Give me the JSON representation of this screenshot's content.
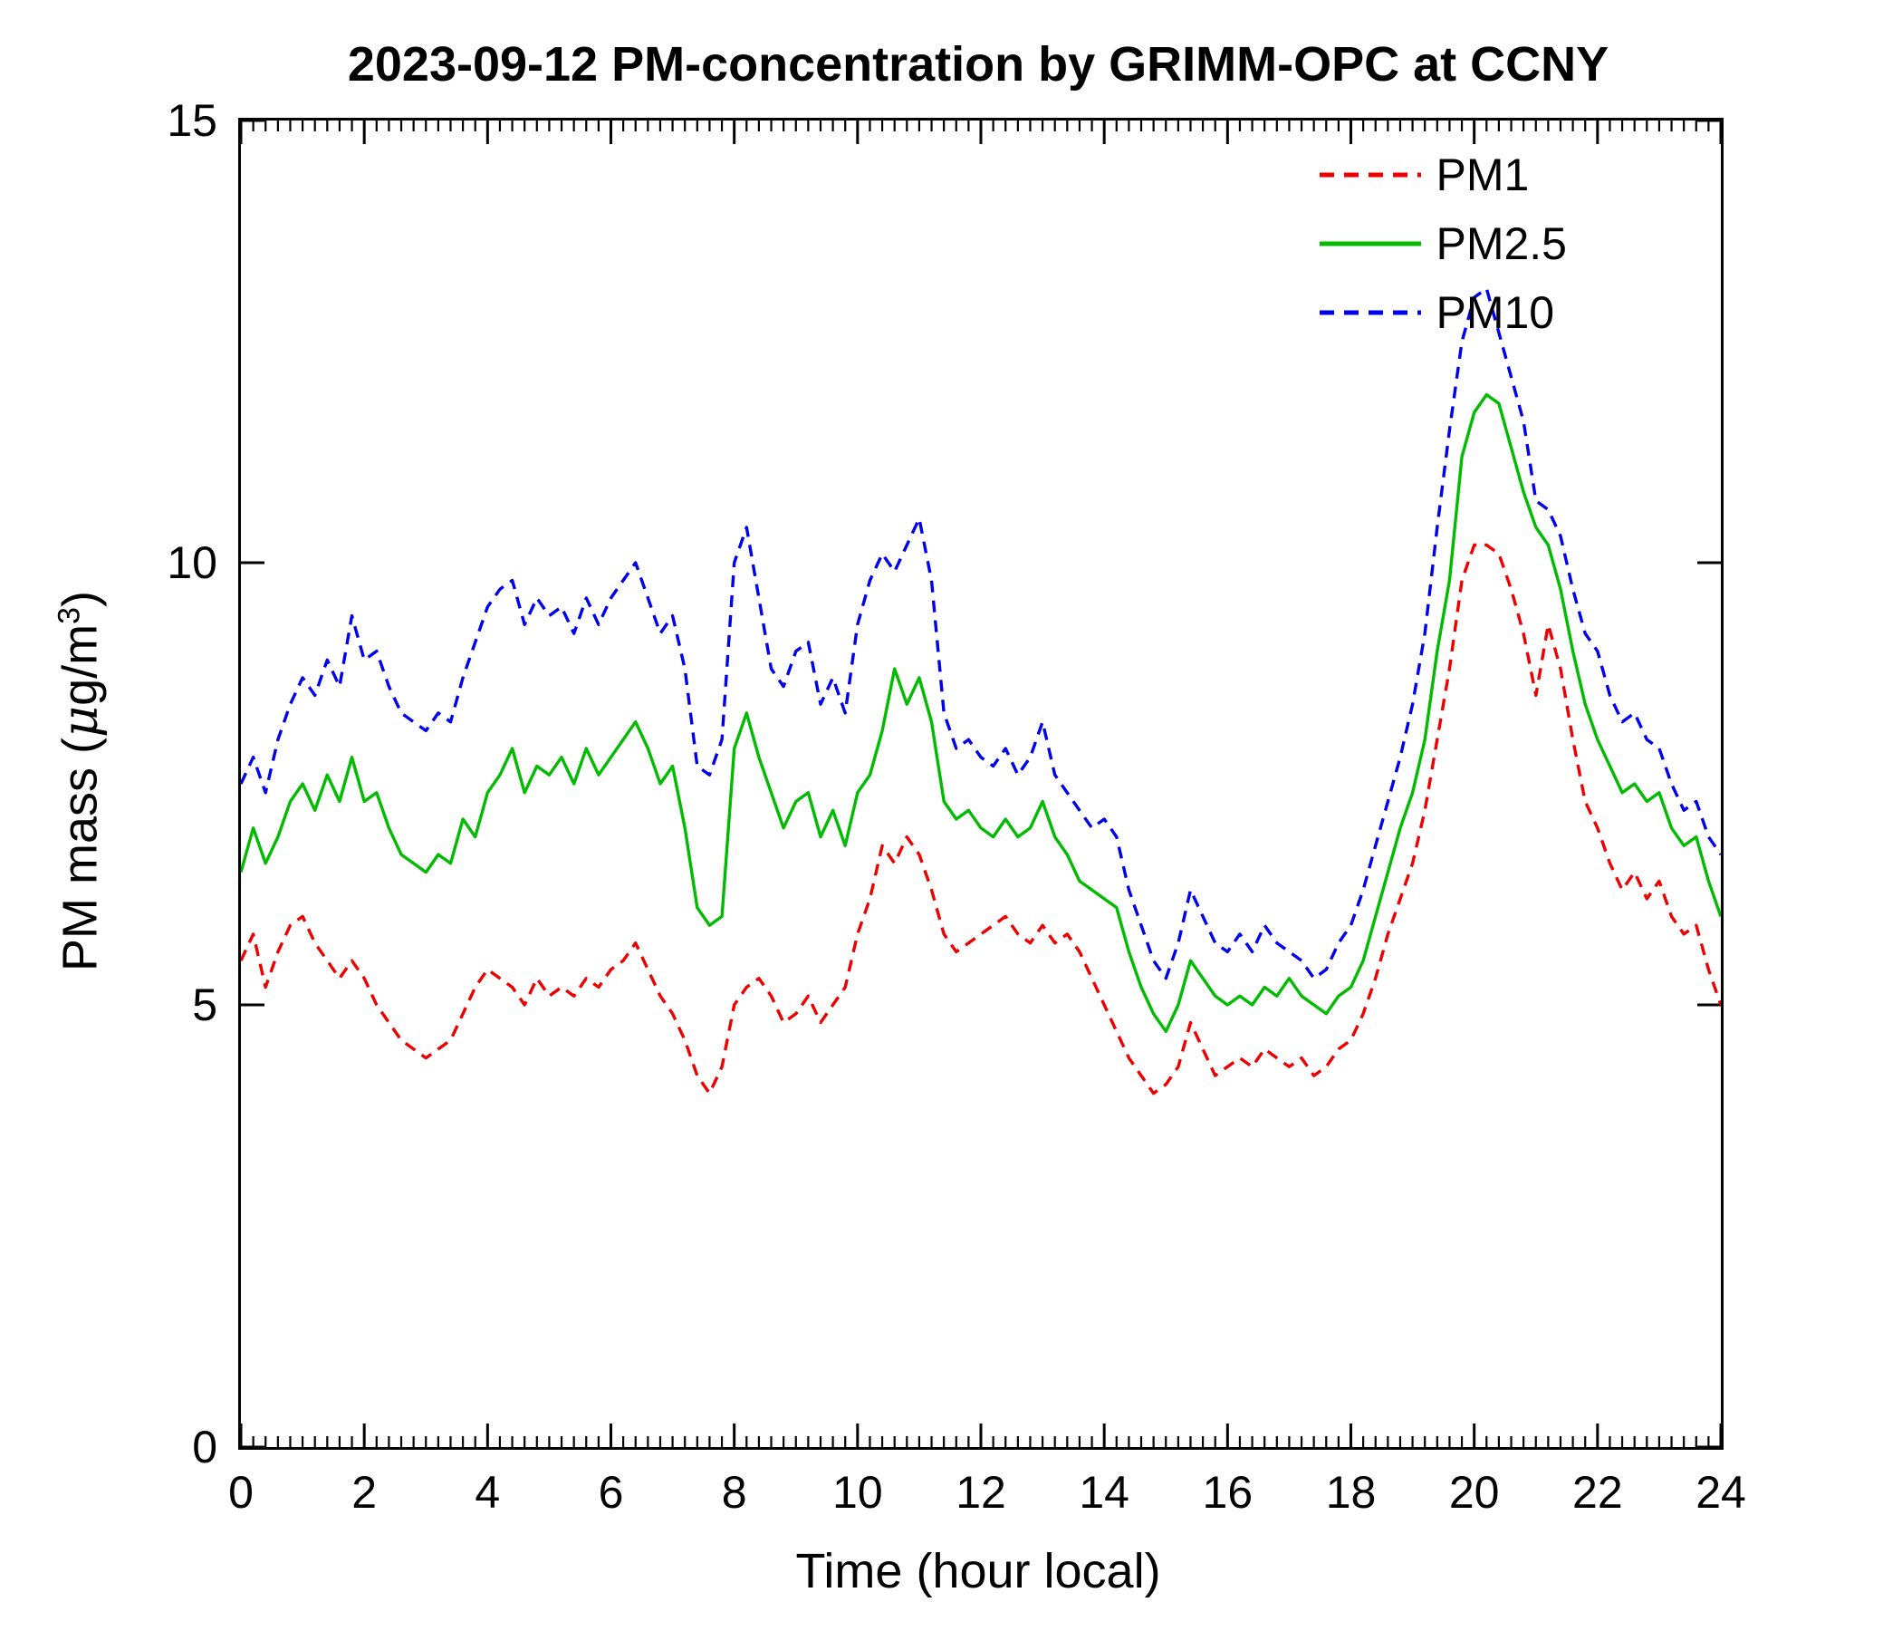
{
  "chart_data": {
    "type": "line",
    "title": "2023-09-12 PM-concentration by GRIMM-OPC at CCNY",
    "xlabel": "Time (hour local)",
    "ylabel": {
      "prefix": "PM mass (",
      "mu": "μ",
      "unit": "g/m",
      "sup": "3",
      "close": ")"
    },
    "xlim": [
      0,
      24
    ],
    "ylim": [
      0,
      15
    ],
    "xticks": [
      0,
      2,
      4,
      6,
      8,
      10,
      12,
      14,
      16,
      18,
      20,
      22,
      24
    ],
    "yticks": [
      0,
      5,
      10,
      15
    ],
    "x_minor_step": 0.2,
    "grid": false,
    "legend_position": "top-right-inside",
    "x_start": 0,
    "x_step": 0.2,
    "series": [
      {
        "name": "PM1",
        "color": "#ee0000",
        "style": "dashed",
        "values": [
          5.5,
          5.8,
          5.2,
          5.6,
          5.9,
          6.0,
          5.7,
          5.5,
          5.3,
          5.5,
          5.3,
          5.0,
          4.8,
          4.6,
          4.5,
          4.4,
          4.5,
          4.6,
          4.9,
          5.2,
          5.4,
          5.3,
          5.2,
          5.0,
          5.3,
          5.1,
          5.2,
          5.1,
          5.3,
          5.2,
          5.4,
          5.5,
          5.7,
          5.4,
          5.1,
          4.9,
          4.6,
          4.2,
          4.0,
          4.3,
          5.0,
          5.2,
          5.3,
          5.1,
          4.8,
          4.9,
          5.1,
          4.8,
          5.0,
          5.2,
          5.8,
          6.2,
          6.8,
          6.6,
          6.9,
          6.7,
          6.3,
          5.8,
          5.6,
          5.7,
          5.8,
          5.9,
          6.0,
          5.8,
          5.7,
          5.9,
          5.7,
          5.8,
          5.6,
          5.3,
          5.0,
          4.7,
          4.4,
          4.2,
          4.0,
          4.1,
          4.3,
          4.8,
          4.5,
          4.2,
          4.3,
          4.4,
          4.3,
          4.5,
          4.4,
          4.3,
          4.4,
          4.2,
          4.3,
          4.5,
          4.6,
          4.9,
          5.3,
          5.8,
          6.2,
          6.6,
          7.2,
          8.0,
          8.8,
          9.8,
          10.2,
          10.2,
          10.1,
          9.7,
          9.2,
          8.5,
          9.3,
          8.8,
          8.0,
          7.3,
          7.0,
          6.6,
          6.3,
          6.5,
          6.2,
          6.4,
          6.0,
          5.8,
          5.9,
          5.4,
          5.0
        ]
      },
      {
        "name": "PM2.5",
        "color": "#00bb00",
        "style": "solid",
        "values": [
          6.5,
          7.0,
          6.6,
          6.9,
          7.3,
          7.5,
          7.2,
          7.6,
          7.3,
          7.8,
          7.3,
          7.4,
          7.0,
          6.7,
          6.6,
          6.5,
          6.7,
          6.6,
          7.1,
          6.9,
          7.4,
          7.6,
          7.9,
          7.4,
          7.7,
          7.6,
          7.8,
          7.5,
          7.9,
          7.6,
          7.8,
          8.0,
          8.2,
          7.9,
          7.5,
          7.7,
          7.0,
          6.1,
          5.9,
          6.0,
          7.9,
          8.3,
          7.8,
          7.4,
          7.0,
          7.3,
          7.4,
          6.9,
          7.2,
          6.8,
          7.4,
          7.6,
          8.1,
          8.8,
          8.4,
          8.7,
          8.2,
          7.3,
          7.1,
          7.2,
          7.0,
          6.9,
          7.1,
          6.9,
          7.0,
          7.3,
          6.9,
          6.7,
          6.4,
          6.3,
          6.2,
          6.1,
          5.6,
          5.2,
          4.9,
          4.7,
          5.0,
          5.5,
          5.3,
          5.1,
          5.0,
          5.1,
          5.0,
          5.2,
          5.1,
          5.3,
          5.1,
          5.0,
          4.9,
          5.1,
          5.2,
          5.5,
          6.0,
          6.5,
          7.0,
          7.4,
          8.0,
          9.0,
          9.8,
          11.2,
          11.7,
          11.9,
          11.8,
          11.3,
          10.8,
          10.4,
          10.2,
          9.7,
          9.0,
          8.4,
          8.0,
          7.7,
          7.4,
          7.5,
          7.3,
          7.4,
          7.0,
          6.8,
          6.9,
          6.4,
          6.0
        ]
      },
      {
        "name": "PM10",
        "color": "#0000ee",
        "style": "dashed",
        "values": [
          7.5,
          7.8,
          7.4,
          8.0,
          8.4,
          8.7,
          8.5,
          8.9,
          8.6,
          9.4,
          8.9,
          9.0,
          8.6,
          8.3,
          8.2,
          8.1,
          8.3,
          8.2,
          8.7,
          9.1,
          9.5,
          9.7,
          9.8,
          9.3,
          9.6,
          9.4,
          9.5,
          9.2,
          9.6,
          9.3,
          9.6,
          9.8,
          10.0,
          9.6,
          9.2,
          9.4,
          8.8,
          7.7,
          7.6,
          8.0,
          10.0,
          10.4,
          9.6,
          8.8,
          8.6,
          9.0,
          9.1,
          8.4,
          8.7,
          8.3,
          9.3,
          9.8,
          10.1,
          9.9,
          10.2,
          10.5,
          9.8,
          8.3,
          7.9,
          8.0,
          7.8,
          7.7,
          7.9,
          7.6,
          7.8,
          8.2,
          7.6,
          7.4,
          7.2,
          7.0,
          7.1,
          6.9,
          6.3,
          5.9,
          5.5,
          5.3,
          5.7,
          6.3,
          6.0,
          5.7,
          5.6,
          5.8,
          5.6,
          5.9,
          5.7,
          5.6,
          5.5,
          5.3,
          5.4,
          5.7,
          5.9,
          6.3,
          6.8,
          7.3,
          7.8,
          8.4,
          9.2,
          10.4,
          11.5,
          12.5,
          13.0,
          13.1,
          12.6,
          12.1,
          11.6,
          10.7,
          10.6,
          10.3,
          9.7,
          9.2,
          9.0,
          8.5,
          8.2,
          8.3,
          8.0,
          7.9,
          7.5,
          7.2,
          7.3,
          6.9,
          6.7
        ]
      }
    ]
  }
}
